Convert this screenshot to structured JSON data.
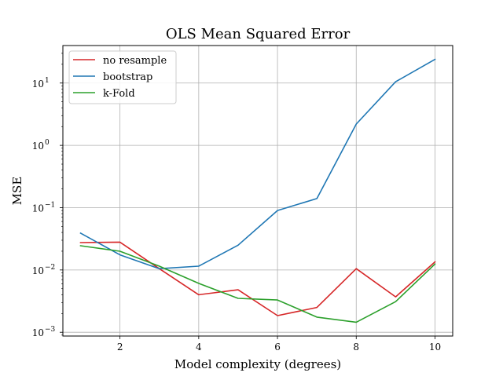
{
  "chart_data": {
    "type": "line",
    "title": "OLS Mean Squared Error",
    "xlabel": "Model complexity (degrees)",
    "ylabel": "MSE",
    "yscale": "log",
    "grid": true,
    "legend_position": "top-left",
    "xlim": [
      0.55,
      10.45
    ],
    "ylim": [
      0.00087,
      40
    ],
    "x_ticks": [
      2,
      4,
      6,
      8,
      10
    ],
    "y_ticks": [
      {
        "value": 0.001,
        "base": "10",
        "exp": "−3"
      },
      {
        "value": 0.01,
        "base": "10",
        "exp": "−2"
      },
      {
        "value": 0.1,
        "base": "10",
        "exp": "−1"
      },
      {
        "value": 1,
        "base": "10",
        "exp": "0"
      },
      {
        "value": 10,
        "base": "10",
        "exp": "1"
      }
    ],
    "x": [
      1,
      2,
      3,
      4,
      5,
      6,
      7,
      8,
      9,
      10
    ],
    "series": [
      {
        "name": "no resample",
        "color": "#d62728",
        "values": [
          0.0275,
          0.028,
          0.0105,
          0.004,
          0.0048,
          0.00185,
          0.0025,
          0.0105,
          0.0037,
          0.0135
        ]
      },
      {
        "name": "bootstrap",
        "color": "#1f77b4",
        "values": [
          0.039,
          0.0175,
          0.0105,
          0.0115,
          0.025,
          0.09,
          0.14,
          2.2,
          10.5,
          24
        ]
      },
      {
        "name": "k-Fold",
        "color": "#2ca02c",
        "values": [
          0.0245,
          0.02,
          0.0115,
          0.0061,
          0.0035,
          0.0033,
          0.00175,
          0.00145,
          0.0031,
          0.0125
        ]
      }
    ]
  }
}
